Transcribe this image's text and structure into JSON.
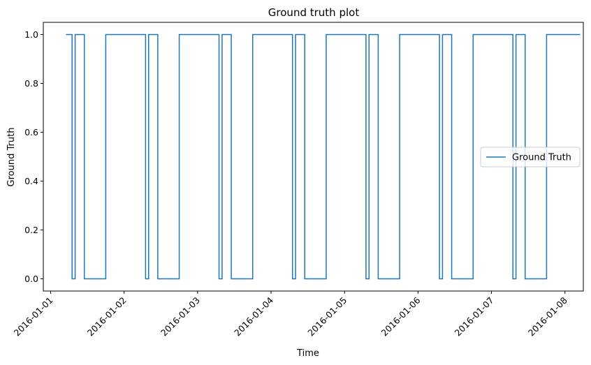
{
  "chart_data": {
    "type": "line",
    "title": "Ground truth plot",
    "xlabel": "Time",
    "ylabel": "Ground Truth",
    "x_axis_type": "datetime",
    "xlim": [
      "2016-01-00T21:36",
      "2016-01-08T06:00"
    ],
    "ylim": [
      -0.05,
      1.05
    ],
    "x_ticks": [
      "2016-01-01",
      "2016-01-02",
      "2016-01-03",
      "2016-01-04",
      "2016-01-05",
      "2016-01-06",
      "2016-01-07",
      "2016-01-08"
    ],
    "y_ticks": [
      0.0,
      0.2,
      0.4,
      0.6,
      0.8,
      1.0
    ],
    "y_tick_labels": [
      "0.0",
      "0.2",
      "0.4",
      "0.6",
      "0.8",
      "1.0"
    ],
    "grid": false,
    "legend": {
      "position": "right",
      "entries": [
        "Ground Truth"
      ]
    },
    "series": [
      {
        "name": "Ground Truth",
        "color": "#1f77b4",
        "step": true,
        "points": [
          [
            "2016-01-01T05:00",
            1
          ],
          [
            "2016-01-01T07:00",
            0
          ],
          [
            "2016-01-01T08:00",
            1
          ],
          [
            "2016-01-01T11:00",
            0
          ],
          [
            "2016-01-01T18:00",
            1
          ],
          [
            "2016-01-02T07:00",
            0
          ],
          [
            "2016-01-02T08:00",
            1
          ],
          [
            "2016-01-02T11:00",
            0
          ],
          [
            "2016-01-02T18:00",
            1
          ],
          [
            "2016-01-03T07:00",
            0
          ],
          [
            "2016-01-03T08:00",
            1
          ],
          [
            "2016-01-03T11:00",
            0
          ],
          [
            "2016-01-03T18:00",
            1
          ],
          [
            "2016-01-04T07:00",
            0
          ],
          [
            "2016-01-04T08:00",
            1
          ],
          [
            "2016-01-04T11:00",
            0
          ],
          [
            "2016-01-04T18:00",
            1
          ],
          [
            "2016-01-05T07:00",
            0
          ],
          [
            "2016-01-05T08:00",
            1
          ],
          [
            "2016-01-05T11:00",
            0
          ],
          [
            "2016-01-05T18:00",
            1
          ],
          [
            "2016-01-06T07:00",
            0
          ],
          [
            "2016-01-06T08:00",
            1
          ],
          [
            "2016-01-06T11:00",
            0
          ],
          [
            "2016-01-06T18:00",
            1
          ],
          [
            "2016-01-07T07:00",
            0
          ],
          [
            "2016-01-07T08:00",
            1
          ],
          [
            "2016-01-07T11:00",
            0
          ],
          [
            "2016-01-07T18:00",
            1
          ],
          [
            "2016-01-08T05:00",
            1
          ]
        ]
      }
    ]
  }
}
